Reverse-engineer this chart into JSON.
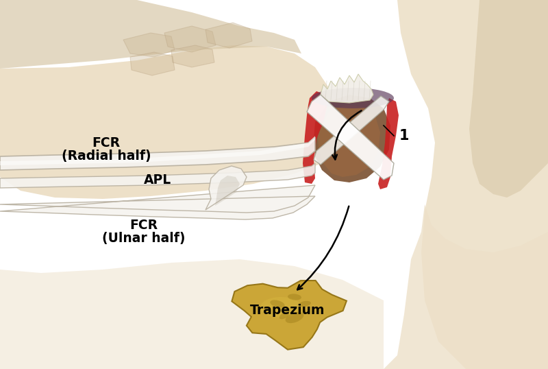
{
  "background_color": "#ffffff",
  "figsize": [
    8.0,
    5.38
  ],
  "dpi": 100,
  "labels": {
    "FCR_radial_line1": "FCR",
    "FCR_radial_line2": "(Radial half)",
    "APL": "APL",
    "FCR_ulnar_line1": "FCR",
    "FCR_ulnar_line2": "(Ulnar half)",
    "trapezium": "Trapezium",
    "number_1": "1"
  },
  "colors": {
    "skin_light": "#ede0c8",
    "skin_medium": "#d8c8a8",
    "skin_dark": "#c8b490",
    "skin_shadow": "#b8a080",
    "tendon_white": "#e8e4dc",
    "tendon_highlight": "#f5f3ef",
    "tendon_shadow": "#b8b0a0",
    "red_tissue": "#c82020",
    "red_light": "#e04040",
    "dark_tissue": "#7a5030",
    "brown_tissue": "#9a6840",
    "bone_white": "#f2efe8",
    "purple_shadow": "#5a3858",
    "trapezium_gold": "#c8a028",
    "trapezium_mid": "#b08820",
    "trapezium_dark": "#907010",
    "trapezium_light": "#d8b840",
    "arrow_color": "#000000",
    "label_color": "#000000"
  }
}
